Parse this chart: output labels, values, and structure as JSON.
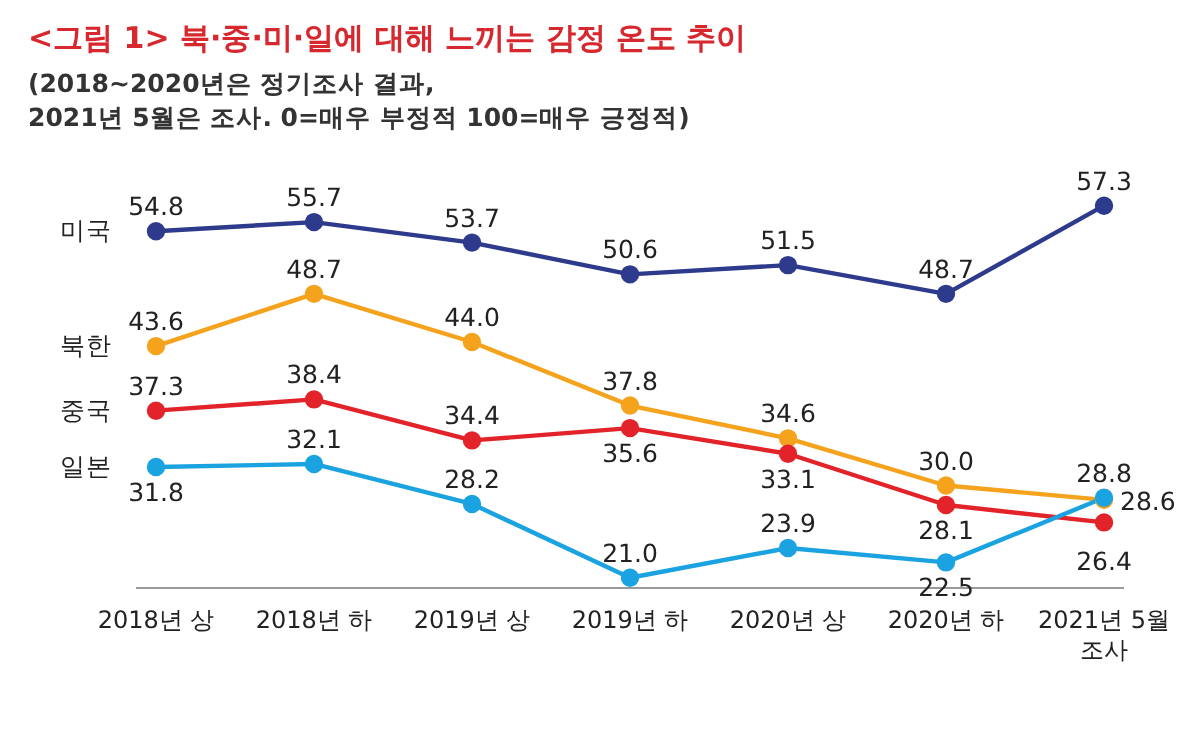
{
  "chart_data": {
    "type": "line",
    "title": "<그림 1> 북·중·미·일에 대해 느끼는 감정 온도 추이",
    "subtitle": "(2018~2020년은 정기조사 결과,\n2021년 5월은 조사. 0=매우 부정적 100=매우 긍정적)",
    "categories": [
      "2018년 상",
      "2018년 하",
      "2019년 상",
      "2019년 하",
      "2020년 상",
      "2020년 하",
      "2021년 5월 조사"
    ],
    "series": [
      {
        "name": "미국",
        "color": "#2e3a8c",
        "values": [
          54.8,
          55.7,
          53.7,
          50.6,
          51.5,
          48.7,
          57.3
        ]
      },
      {
        "name": "북한",
        "color": "#f5a21d",
        "values": [
          43.6,
          48.7,
          44.0,
          37.8,
          34.6,
          30.0,
          28.6
        ],
        "value_labels": [
          "43.6",
          "48.7",
          "44.0",
          "37.8",
          "34.6",
          "30.0",
          "28.6"
        ]
      },
      {
        "name": "중국",
        "color": "#e3232a",
        "values": [
          37.3,
          38.4,
          34.4,
          35.6,
          33.1,
          28.1,
          26.4
        ]
      },
      {
        "name": "일본",
        "color": "#1aa3e0",
        "values": [
          31.8,
          32.1,
          28.2,
          21.0,
          23.9,
          22.5,
          28.8
        ],
        "value_labels": [
          "31.8",
          "32.1",
          "28.2",
          "21.0",
          "23.9",
          "22.5",
          "28.8"
        ]
      }
    ],
    "marker": "circle",
    "line_style": "solid",
    "data_labels": true,
    "legend": false,
    "grid": false
  }
}
